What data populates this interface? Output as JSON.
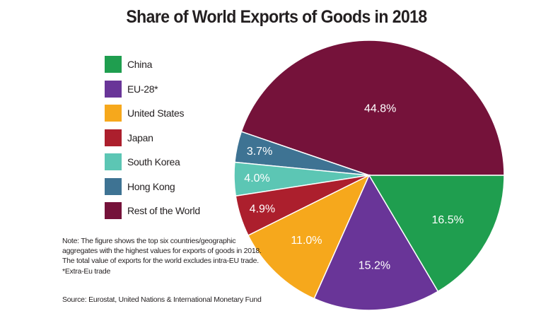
{
  "chart_data": {
    "type": "pie",
    "title": "Share of World Exports of Goods in 2018",
    "categories": [
      "Rest of the World",
      "Hong Kong",
      "South Korea",
      "Japan",
      "United States",
      "EU-28*",
      "China"
    ],
    "values": [
      44.8,
      3.7,
      4.0,
      4.9,
      11.0,
      15.2,
      16.5
    ],
    "value_labels": [
      "44.8%",
      "3.7%",
      "4.0%",
      "4.9%",
      "11.0%",
      "15.2%",
      "16.5%"
    ],
    "colors": [
      "#75123a",
      "#3e7393",
      "#5cc6b4",
      "#ac1f2d",
      "#f6a81c",
      "#693598",
      "#1f9e4f"
    ],
    "legend": {
      "placement": "left",
      "items": [
        {
          "label": "China",
          "color": "#1f9e4f"
        },
        {
          "label": "EU-28*",
          "color": "#693598"
        },
        {
          "label": "United States",
          "color": "#f6a81c"
        },
        {
          "label": "Japan",
          "color": "#ac1f2d"
        },
        {
          "label": "South Korea",
          "color": "#5cc6b4"
        },
        {
          "label": "Hong Kong",
          "color": "#3e7393"
        },
        {
          "label": "Rest of the World",
          "color": "#75123a"
        }
      ]
    },
    "note": "Note: The figure shows the top six countries/geographic aggregates with the highest values for exports of goods in 2018. The total value of exports for the world excludes intra-EU trade.   *Extra-Eu trade",
    "source": "Source: Eurostat, United Nations & International Monetary Fund"
  }
}
